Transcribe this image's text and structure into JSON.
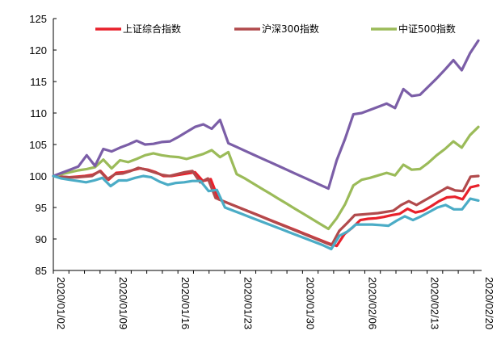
{
  "chart_data": {
    "type": "line",
    "title": "",
    "xlabel": "",
    "ylabel": "",
    "ylim": [
      85,
      125
    ],
    "yticks": [
      85,
      90,
      95,
      100,
      105,
      110,
      115,
      120,
      125
    ],
    "grid": false,
    "legend_position": "top",
    "x_tick_labels": [
      "2020/01/02",
      "2020/01/09",
      "2020/01/16",
      "2020/01/23",
      "2020/01/30",
      "2020/02/06",
      "2020/02/13",
      "2020/02/20"
    ],
    "x_tick_index": [
      0,
      8,
      16,
      24,
      32,
      40,
      48,
      56
    ],
    "series": [
      {
        "name": "上证综合指数",
        "color": "#e8212b",
        "values": [
          100.0,
          99.9,
          99.8,
          99.9,
          100.0,
          100.2,
          100.8,
          99.4,
          100.5,
          100.6,
          100.9,
          101.2,
          101.0,
          100.6,
          100.0,
          100.0,
          100.2,
          100.4,
          100.6,
          99.2,
          99.5,
          96.3,
          95.8,
          95.3,
          94.8,
          94.3,
          93.8,
          93.3,
          92.8,
          92.3,
          91.8,
          91.3,
          90.8,
          90.3,
          89.8,
          89.3,
          88.9,
          90.8,
          91.8,
          93.0,
          93.2,
          93.3,
          93.5,
          93.8,
          94.0,
          94.8,
          94.2,
          94.5,
          95.2,
          96.0,
          96.6,
          96.7,
          96.3,
          98.2,
          98.5
        ]
      },
      {
        "name": "沪深300指数",
        "color": "#b14a4c",
        "values": [
          100.0,
          99.9,
          99.8,
          99.8,
          99.9,
          100.0,
          100.8,
          99.5,
          100.3,
          100.4,
          100.8,
          101.3,
          101.0,
          100.6,
          100.2,
          100.0,
          100.3,
          100.6,
          100.8,
          99.0,
          99.6,
          96.5,
          96.0,
          95.5,
          95.0,
          94.5,
          94.0,
          93.5,
          93.0,
          92.5,
          92.0,
          91.5,
          91.0,
          90.5,
          90.0,
          89.5,
          89.0,
          91.3,
          92.5,
          93.8,
          93.9,
          94.0,
          94.1,
          94.3,
          94.5,
          95.4,
          96.0,
          95.4,
          96.1,
          96.8,
          97.5,
          98.2,
          97.7,
          97.6,
          99.9,
          100.0
        ]
      },
      {
        "name": "中证500指数",
        "color": "#9bbb59",
        "values": [
          100.0,
          100.3,
          100.6,
          100.9,
          101.1,
          101.4,
          102.6,
          101.2,
          102.5,
          102.2,
          102.7,
          103.3,
          103.6,
          103.3,
          103.1,
          103.0,
          102.7,
          103.1,
          103.5,
          104.1,
          103.0,
          103.8,
          100.3,
          99.6,
          98.8,
          98.0,
          97.2,
          96.4,
          95.6,
          94.8,
          94.0,
          93.2,
          92.4,
          91.6,
          93.3,
          95.5,
          98.5,
          99.4,
          99.7,
          100.1,
          100.5,
          100.1,
          101.8,
          101.0,
          101.1,
          102.1,
          103.3,
          104.3,
          105.5,
          104.5,
          106.5,
          107.8
        ]
      },
      {
        "name": "",
        "color": "#7b5ea7",
        "values": [
          100.0,
          100.5,
          101.0,
          101.5,
          103.3,
          101.6,
          104.3,
          103.9,
          104.5,
          105.0,
          105.6,
          105.0,
          105.1,
          105.4,
          105.5,
          106.2,
          107.0,
          107.8,
          108.2,
          107.5,
          108.9,
          105.2,
          104.6,
          104.0,
          103.4,
          102.8,
          102.2,
          101.6,
          101.0,
          100.4,
          99.8,
          99.2,
          98.6,
          98.0,
          102.5,
          105.9,
          109.8,
          110.0,
          110.5,
          111.0,
          111.5,
          110.8,
          113.8,
          112.7,
          112.9,
          114.2,
          115.5,
          116.9,
          118.4,
          116.8,
          119.5,
          121.5
        ]
      },
      {
        "name": "",
        "color": "#4bacc6",
        "values": [
          100.0,
          99.6,
          99.4,
          99.2,
          99.0,
          99.3,
          99.7,
          98.4,
          99.3,
          99.3,
          99.7,
          100.0,
          99.8,
          99.1,
          98.6,
          98.9,
          99.0,
          99.2,
          99.2,
          97.6,
          97.8,
          95.0,
          94.5,
          94.0,
          93.5,
          93.0,
          92.5,
          92.0,
          91.5,
          91.0,
          90.5,
          90.0,
          89.5,
          89.0,
          88.4,
          90.5,
          91.2,
          92.3,
          92.3,
          92.3,
          92.2,
          92.1,
          92.9,
          93.6,
          93.0,
          93.6,
          94.3,
          95.0,
          95.4,
          94.7,
          94.7,
          96.4,
          96.1
        ]
      }
    ]
  }
}
